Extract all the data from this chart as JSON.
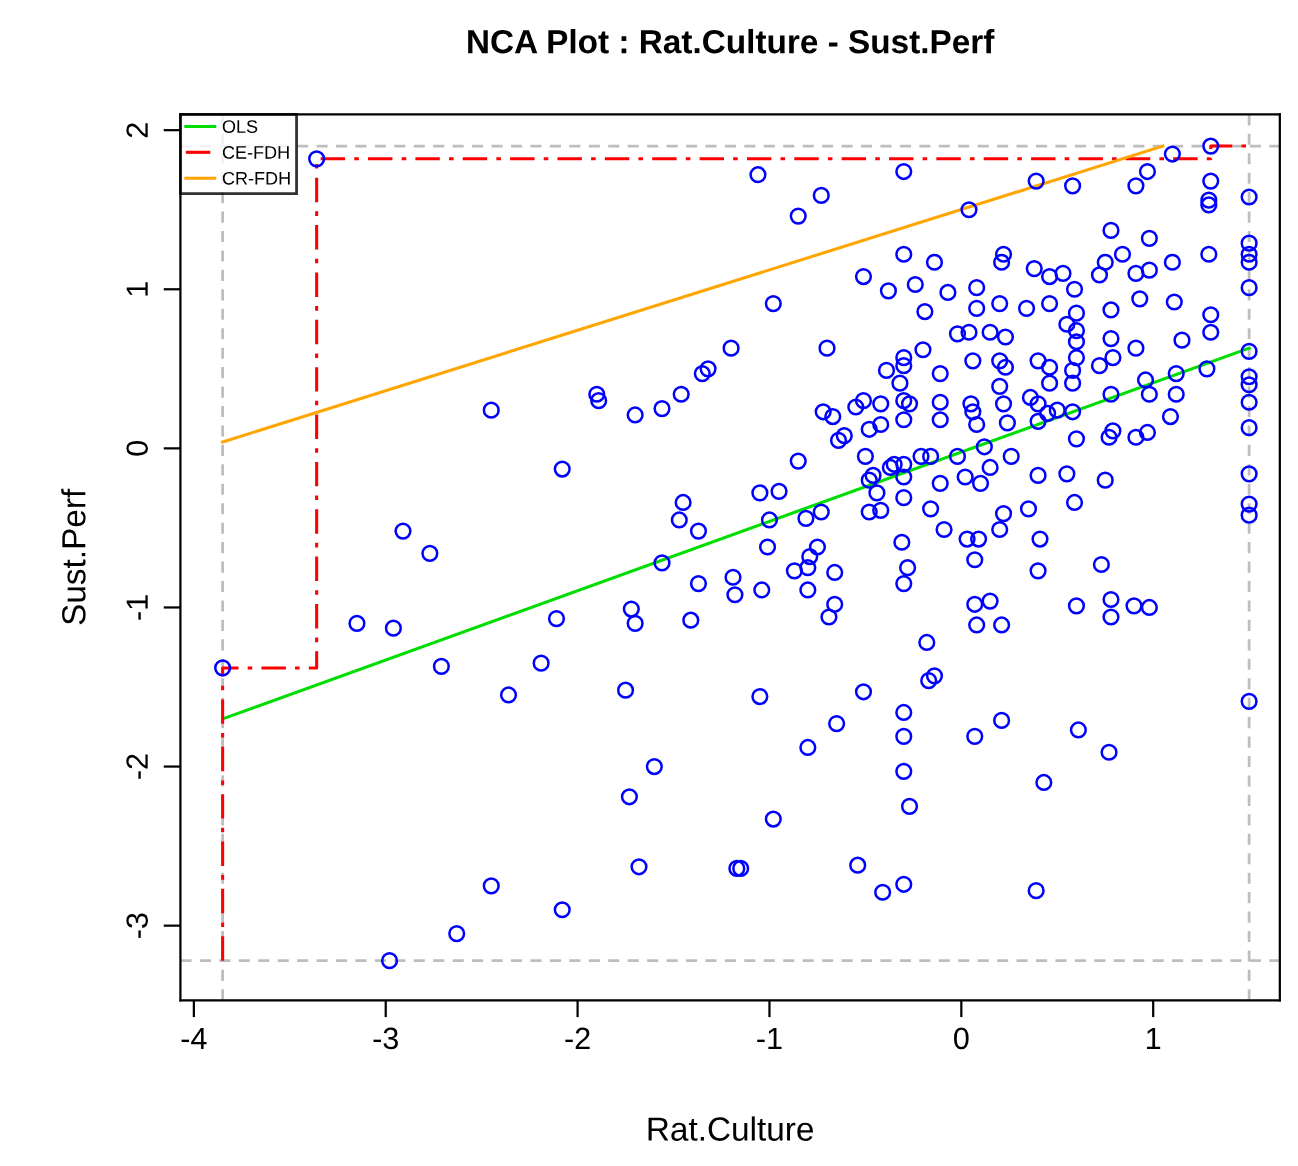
{
  "chart_data": {
    "type": "scatter",
    "title": "NCA Plot : Rat.Culture - Sust.Perf",
    "xlabel": "Rat.Culture",
    "ylabel": "Sust.Perf",
    "xlim": [
      -4.07,
      1.66
    ],
    "ylim": [
      -3.47,
      2.1
    ],
    "xticks": [
      -4,
      -3,
      -2,
      -1,
      0,
      1
    ],
    "yticks": [
      -3,
      -2,
      -1,
      0,
      1,
      2
    ],
    "grid": false,
    "legend": "top left",
    "series": [
      {
        "marker": "circle",
        "color": "#0000ff",
        "x": [
          -3.36,
          -2.45,
          -2.08,
          -1.9,
          -1.89,
          -1.7,
          -1.56,
          -1.46,
          -1.35,
          -1.32,
          -1.2,
          -1.45,
          -1.47,
          -1.37,
          -2.91,
          -2.77,
          -3.85,
          -3.15,
          -2.96,
          -2.71,
          -2.36,
          -2.19,
          -2.11,
          -1.75,
          -1.72,
          -1.7,
          -1.56,
          -1.41,
          -1.37,
          -1.19,
          -1.18,
          -1.6,
          -1.73,
          -1.68,
          -1.17,
          -2.45,
          -2.08,
          -2.63,
          -2.98,
          -1.04,
          -1.01,
          -0.87,
          -0.8,
          -0.79,
          -0.75,
          -0.66,
          -0.8,
          -0.66,
          -0.69,
          -0.31,
          -0.28,
          -0.3,
          -0.09,
          0.03,
          0.09,
          0.07,
          0.2,
          0.41,
          0.4,
          0.73,
          0.07,
          0.15,
          0.08,
          0.21,
          0.6,
          0.78,
          0.78,
          0.9,
          0.98,
          -0.18,
          -0.17,
          -0.14,
          -1.05,
          -0.51,
          -0.65,
          -0.8,
          -0.3,
          -0.3,
          0.07,
          0.21,
          0.61,
          0.77,
          1.5,
          -0.3,
          -0.27,
          0.43,
          -0.98,
          -1.15,
          -0.54,
          -0.41,
          -0.3,
          0.39,
          -1.06,
          -0.3,
          -0.85,
          -0.73,
          0.04,
          0.39,
          0.58,
          0.91,
          0.97,
          1.1,
          1.3,
          1.3,
          1.29,
          1.29,
          1.5,
          -0.98,
          -0.7,
          -0.51,
          -0.38,
          -0.3,
          -0.24,
          -0.14,
          -0.07,
          0.08,
          -0.19,
          0.08,
          0.2,
          0.22,
          0.21,
          0.38,
          0.46,
          0.53,
          0.59,
          0.34,
          0.46,
          0.75,
          0.72,
          0.78,
          0.84,
          0.98,
          0.91,
          0.98,
          1.1,
          0.93,
          1.11,
          1.29,
          1.5,
          1.5,
          1.5,
          1.5,
          1.3,
          1.3,
          1.15,
          0.91,
          0.78,
          0.78,
          0.6,
          0.6,
          0.6,
          0.6,
          0.55,
          -0.02,
          0.04,
          0.15,
          0.23,
          0.2,
          0.23,
          0.06,
          -0.11,
          -0.2,
          -0.3,
          -0.3,
          -0.39,
          -0.32,
          -0.3,
          -0.27,
          -0.3,
          -0.42,
          -0.51,
          -0.48,
          -0.55,
          -0.72,
          -0.67,
          -0.61,
          -0.64,
          -0.85,
          -0.5,
          -0.46,
          -0.44,
          -0.48,
          -0.35,
          -0.3,
          -0.3,
          -0.3,
          -0.21,
          -0.16,
          -0.16,
          -0.11,
          -0.11,
          -0.11,
          -0.02,
          0.02,
          0.05,
          0.06,
          0.08,
          0.12,
          0.15,
          0.1,
          0.2,
          0.22,
          0.24,
          0.26,
          0.36,
          0.4,
          0.4,
          0.45,
          0.5,
          0.46,
          0.46,
          0.4,
          0.58,
          0.58,
          0.58,
          0.6,
          0.55,
          0.59,
          0.4,
          0.35,
          0.22,
          0.72,
          0.79,
          0.78,
          0.79,
          0.77,
          0.75,
          0.91,
          0.97,
          0.98,
          0.96,
          1.09,
          1.12,
          1.12,
          1.28,
          1.5,
          1.5,
          1.5,
          1.5,
          1.5,
          1.5,
          1.5,
          1.5,
          -1.05,
          -0.95,
          -1.0,
          -0.81,
          -0.73,
          -0.48,
          -0.42,
          -0.42,
          -0.37
        ],
        "values": [
          1.82,
          0.24,
          -0.13,
          0.34,
          0.3,
          0.21,
          0.25,
          0.34,
          0.47,
          0.5,
          0.63,
          -0.34,
          -0.45,
          -0.52,
          -0.52,
          -0.66,
          -1.38,
          -1.1,
          -1.13,
          -1.37,
          -1.55,
          -1.35,
          -1.07,
          -1.52,
          -1.01,
          -1.1,
          -0.72,
          -1.08,
          -0.85,
          -0.81,
          -0.92,
          -2.0,
          -2.19,
          -2.63,
          -2.64,
          -2.75,
          -2.9,
          -3.05,
          -3.22,
          -0.89,
          -0.62,
          -0.77,
          -0.75,
          -0.68,
          -0.62,
          -0.78,
          -0.89,
          -0.98,
          -1.06,
          -0.59,
          -0.75,
          -0.85,
          -0.51,
          -0.57,
          -0.57,
          -0.7,
          -0.51,
          -0.57,
          -0.77,
          -0.73,
          -0.98,
          -0.96,
          -1.11,
          -1.11,
          -0.99,
          -0.95,
          -1.06,
          -0.99,
          -1.0,
          -1.22,
          -1.46,
          -1.43,
          -1.56,
          -1.53,
          -1.73,
          -1.88,
          -1.66,
          -1.81,
          -1.81,
          -1.71,
          -1.77,
          -1.91,
          -1.59,
          -2.03,
          -2.25,
          -2.1,
          -2.33,
          -2.64,
          -2.62,
          -2.79,
          -2.74,
          -2.78,
          1.72,
          1.74,
          1.46,
          1.59,
          1.5,
          1.68,
          1.65,
          1.65,
          1.74,
          1.85,
          1.9,
          1.68,
          1.56,
          1.53,
          1.58,
          0.91,
          0.63,
          1.08,
          0.99,
          1.22,
          1.03,
          1.17,
          0.98,
          1.01,
          0.86,
          0.88,
          0.91,
          1.22,
          1.17,
          1.13,
          1.08,
          1.1,
          1.0,
          0.88,
          0.91,
          1.17,
          1.09,
          1.37,
          1.22,
          1.32,
          1.1,
          1.12,
          1.17,
          0.94,
          0.92,
          1.22,
          1.29,
          1.22,
          1.17,
          1.01,
          0.84,
          0.73,
          0.68,
          0.63,
          0.69,
          0.87,
          0.85,
          0.74,
          0.67,
          0.57,
          0.78,
          0.72,
          0.73,
          0.73,
          0.7,
          0.55,
          0.51,
          0.55,
          0.47,
          0.62,
          0.57,
          0.52,
          0.49,
          0.41,
          0.3,
          0.28,
          0.18,
          0.28,
          0.3,
          0.12,
          0.26,
          0.23,
          0.2,
          0.08,
          0.05,
          -0.08,
          -0.05,
          -0.17,
          -0.28,
          -0.2,
          -0.1,
          -0.18,
          -0.1,
          -0.31,
          -0.05,
          -0.05,
          -0.38,
          -0.22,
          0.18,
          0.29,
          -0.05,
          -0.18,
          0.28,
          0.23,
          0.15,
          0.01,
          -0.12,
          -0.22,
          0.39,
          0.28,
          0.16,
          -0.05,
          0.32,
          0.28,
          0.17,
          0.22,
          0.24,
          0.41,
          0.51,
          0.55,
          0.49,
          0.41,
          0.23,
          0.06,
          -0.16,
          -0.34,
          -0.17,
          -0.38,
          -0.41,
          0.52,
          0.57,
          0.34,
          0.11,
          0.07,
          -0.2,
          0.07,
          0.1,
          0.34,
          0.43,
          0.2,
          0.34,
          0.47,
          0.5,
          0.61,
          0.45,
          0.4,
          0.29,
          0.13,
          -0.16,
          -0.35,
          -0.42,
          -0.28,
          -0.27,
          -0.45,
          -0.44,
          -0.4,
          -0.4,
          -0.39,
          0.15,
          -0.12
        ]
      },
      {
        "type": "line",
        "name": "OLS",
        "color": "#00dd00",
        "line_style": "solid",
        "x": [
          -3.85,
          1.5
        ],
        "values": [
          -1.7,
          0.63
        ]
      },
      {
        "type": "line",
        "name": "CE-FDH",
        "color": "#ff0000",
        "line_style": "dashed",
        "x": [
          -3.85,
          -3.85,
          -3.36,
          -3.36,
          1.3,
          1.3,
          1.5
        ],
        "values": [
          -3.22,
          -1.38,
          -1.38,
          1.82,
          1.82,
          1.9,
          1.9
        ]
      },
      {
        "type": "line",
        "name": "CR-FDH",
        "color": "#ffa500",
        "line_style": "solid",
        "x": [
          -3.85,
          1.05
        ],
        "values": [
          0.04,
          1.9
        ]
      }
    ],
    "ref_lines": [
      {
        "axis": "x",
        "value": -3.85,
        "color": "#bebebe",
        "line_style": "dashed"
      },
      {
        "axis": "x",
        "value": 1.5,
        "color": "#bebebe",
        "line_style": "dashed"
      },
      {
        "axis": "y",
        "value": -3.22,
        "color": "#bebebe",
        "line_style": "dashed"
      },
      {
        "axis": "y",
        "value": 1.9,
        "color": "#bebebe",
        "line_style": "dashed"
      }
    ]
  }
}
